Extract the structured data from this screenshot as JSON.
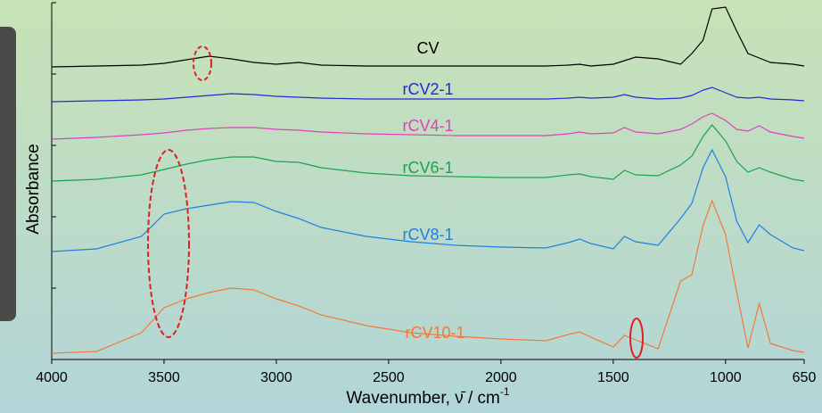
{
  "chart_data": {
    "type": "line",
    "x_label": {
      "text": "Wavenumber, ν̄ / cm",
      "superscript": "-1"
    },
    "y_label": "Absorbance",
    "xlim": [
      4000,
      650
    ],
    "xticks": [
      4000,
      3500,
      3000,
      2500,
      2000,
      1500,
      1000,
      650
    ],
    "ylim": [
      0,
      400
    ],
    "yticks": [
      0,
      80,
      160,
      240,
      320,
      400
    ],
    "x": [
      4000,
      3800,
      3600,
      3500,
      3400,
      3300,
      3200,
      3100,
      3000,
      2900,
      2800,
      2600,
      2400,
      2200,
      2000,
      1800,
      1700,
      1650,
      1600,
      1500,
      1450,
      1400,
      1300,
      1200,
      1150,
      1100,
      1060,
      1000,
      950,
      900,
      850,
      800,
      700,
      650
    ],
    "series": [
      {
        "name": "CV",
        "color": "#000000",
        "values": [
          328,
          329,
          330,
          332,
          336,
          340,
          337,
          333,
          331,
          333,
          330,
          329,
          329,
          329,
          329,
          329,
          330,
          331,
          329,
          331,
          335,
          339,
          337,
          331,
          343,
          358,
          393,
          395,
          368,
          343,
          338,
          333,
          331,
          329
        ]
      },
      {
        "name": "rCV2-1",
        "color": "#1f2bd6",
        "values": [
          289,
          290,
          291,
          292,
          294,
          296,
          298,
          297,
          295,
          294,
          293,
          292,
          292,
          292,
          292,
          292,
          293,
          294,
          293,
          294,
          297,
          294,
          292,
          293,
          296,
          302,
          305,
          299,
          294,
          293,
          294,
          292,
          291,
          290
        ]
      },
      {
        "name": "rCV4-1",
        "color": "#e040c0",
        "values": [
          247,
          249,
          252,
          254,
          257,
          259,
          260,
          260,
          258,
          257,
          255,
          253,
          252,
          251,
          251,
          251,
          253,
          255,
          253,
          254,
          260,
          255,
          253,
          258,
          264,
          272,
          276,
          268,
          258,
          256,
          262,
          255,
          250,
          248
        ]
      },
      {
        "name": "rCV6-1",
        "color": "#1aa34a",
        "values": [
          200,
          202,
          207,
          213,
          219,
          224,
          227,
          227,
          222,
          221,
          215,
          209,
          206,
          205,
          204,
          204,
          207,
          208,
          205,
          202,
          212,
          207,
          206,
          218,
          228,
          250,
          263,
          245,
          222,
          210,
          215,
          210,
          202,
          200
        ]
      },
      {
        "name": "rCV8-1",
        "color": "#1f7fe0",
        "values": [
          121,
          124,
          138,
          163,
          169,
          173,
          177,
          176,
          166,
          158,
          148,
          138,
          132,
          128,
          126,
          125,
          131,
          135,
          130,
          124,
          138,
          132,
          128,
          158,
          175,
          215,
          235,
          205,
          155,
          131,
          151,
          140,
          125,
          122
        ]
      },
      {
        "name": "rCV10-1",
        "color": "#f07a3a",
        "values": [
          7,
          9,
          30,
          58,
          68,
          75,
          80,
          78,
          68,
          60,
          50,
          38,
          30,
          26,
          23,
          21,
          28,
          31,
          25,
          14,
          27,
          22,
          12,
          88,
          95,
          150,
          178,
          140,
          75,
          13,
          63,
          18,
          10,
          8
        ]
      }
    ]
  }
}
